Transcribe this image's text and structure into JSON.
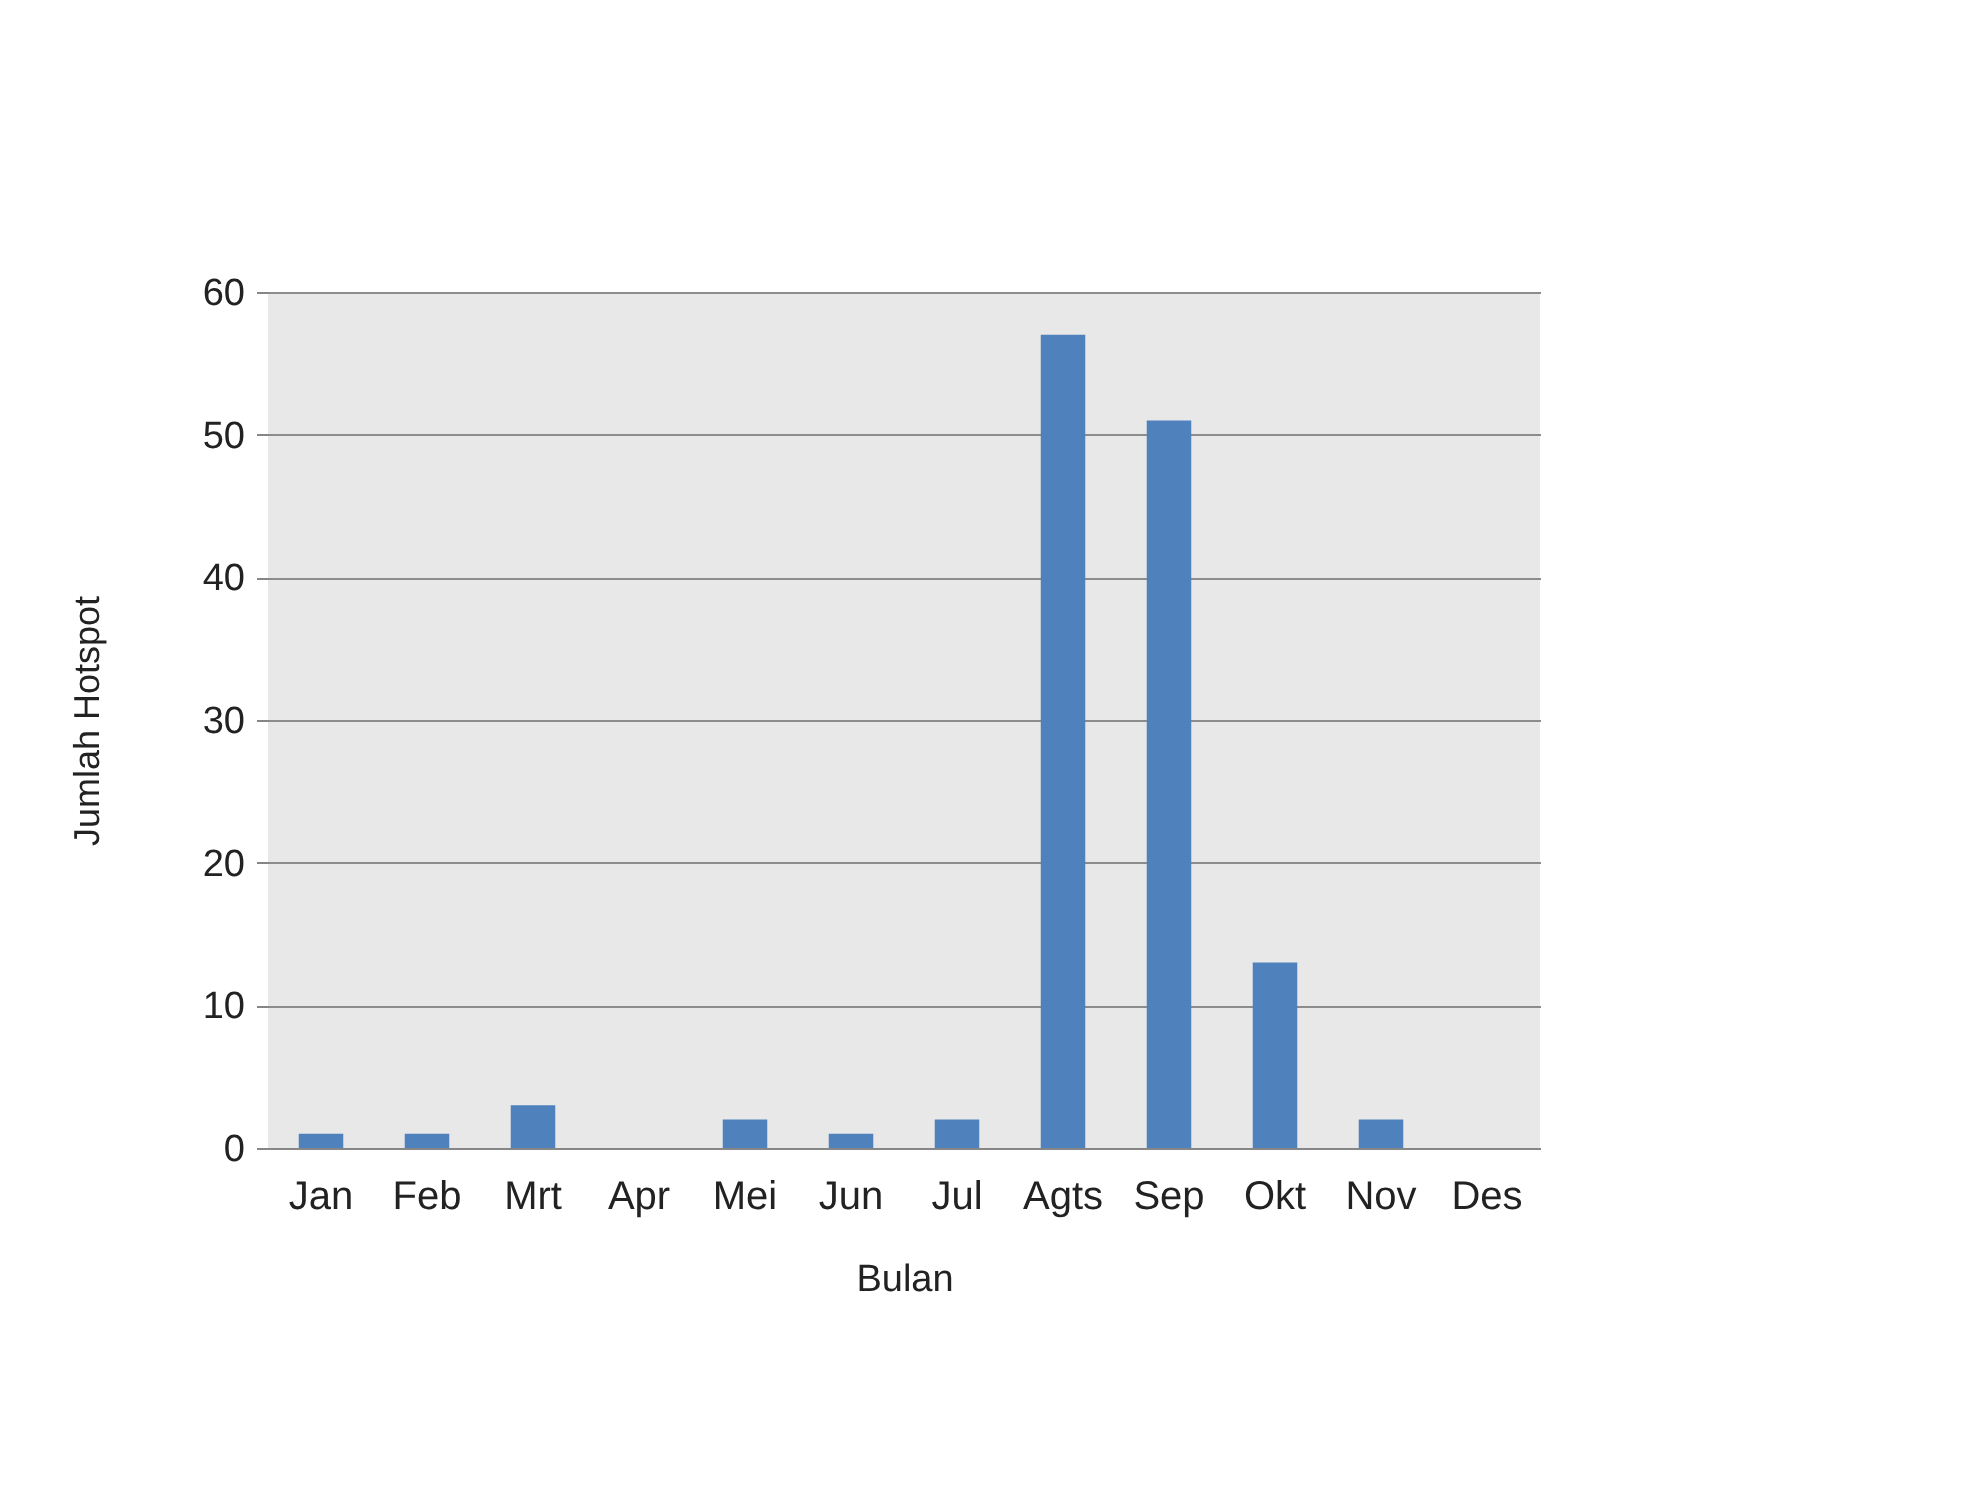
{
  "chart_data": {
    "type": "bar",
    "xlabel": "Bulan",
    "ylabel": "Jumlah Hotspot",
    "categories": [
      "Jan",
      "Feb",
      "Mrt",
      "Apr",
      "Mei",
      "Jun",
      "Jul",
      "Agts",
      "Sep",
      "Okt",
      "Nov",
      "Des"
    ],
    "values": [
      1,
      1,
      3,
      0,
      2,
      1,
      2,
      57,
      51,
      13,
      2,
      0
    ],
    "color": "#4f81bd",
    "ylim": [
      0,
      60
    ],
    "yticks": [
      0,
      10,
      20,
      30,
      40,
      50,
      60
    ],
    "grid": "y"
  }
}
